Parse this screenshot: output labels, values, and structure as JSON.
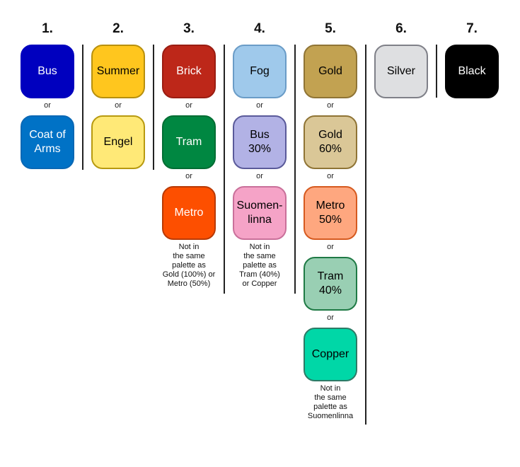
{
  "columns": [
    {
      "number": "1.",
      "swatches": [
        {
          "label": "Bus",
          "bg": "#0000bf",
          "border": "#0000bf",
          "fg": "#ffffff"
        },
        {
          "label": "Coat of Arms",
          "bg": "#0072c6",
          "border": "#0a68b5",
          "fg": "#ffffff"
        }
      ],
      "note": ""
    },
    {
      "number": "2.",
      "swatches": [
        {
          "label": "Summer",
          "bg": "#ffc61e",
          "border": "#b8900e",
          "fg": "#000000"
        },
        {
          "label": "Engel",
          "bg": "#ffe977",
          "border": "#b89a10",
          "fg": "#000000"
        }
      ],
      "note": ""
    },
    {
      "number": "3.",
      "swatches": [
        {
          "label": "Brick",
          "bg": "#bd2719",
          "border": "#9a1d12",
          "fg": "#ffffff"
        },
        {
          "label": "Tram",
          "bg": "#008741",
          "border": "#006d33",
          "fg": "#ffffff"
        },
        {
          "label": "Metro",
          "bg": "#fd4f00",
          "border": "#b83a05",
          "fg": "#ffffff"
        }
      ],
      "note": "Not in\nthe same\npalette as\nGold (100%) or\nMetro (50%)"
    },
    {
      "number": "4.",
      "swatches": [
        {
          "label": "Fog",
          "bg": "#9fc9eb",
          "border": "#6a9cc7",
          "fg": "#000000"
        },
        {
          "label": "Bus 30%",
          "bg": "#b2b2e5",
          "border": "#5a5a9a",
          "fg": "#000000"
        },
        {
          "label": "Suomen-linna",
          "bg": "#f5a3c7",
          "border": "#c9709a",
          "fg": "#000000"
        }
      ],
      "note": "Not in\nthe same\npalette as\nTram (40%)\nor Copper"
    },
    {
      "number": "5.",
      "swatches": [
        {
          "label": "Gold",
          "bg": "#c2a251",
          "border": "#8f7435",
          "fg": "#000000"
        },
        {
          "label": "Gold 60%",
          "bg": "#dac797",
          "border": "#8f7435",
          "fg": "#000000"
        },
        {
          "label": "Metro 50%",
          "bg": "#fea77f",
          "border": "#d65a1f",
          "fg": "#000000"
        },
        {
          "label": "Tram 40%",
          "bg": "#99cfb3",
          "border": "#1f7a45",
          "fg": "#000000"
        },
        {
          "label": "Copper",
          "bg": "#00d7a7",
          "border": "#2d7a66",
          "fg": "#000000"
        }
      ],
      "note": "Not in\nthe same\npalette as\nSuomenlinna"
    },
    {
      "number": "6.",
      "swatches": [
        {
          "label": "Silver",
          "bg": "#dedfe1",
          "border": "#7f8088",
          "fg": "#000000"
        }
      ],
      "note": ""
    },
    {
      "number": "7.",
      "swatches": [
        {
          "label": "Black",
          "bg": "#000000",
          "border": "#000000",
          "fg": "#ffffff"
        }
      ],
      "note": ""
    }
  ],
  "or_label": "or"
}
